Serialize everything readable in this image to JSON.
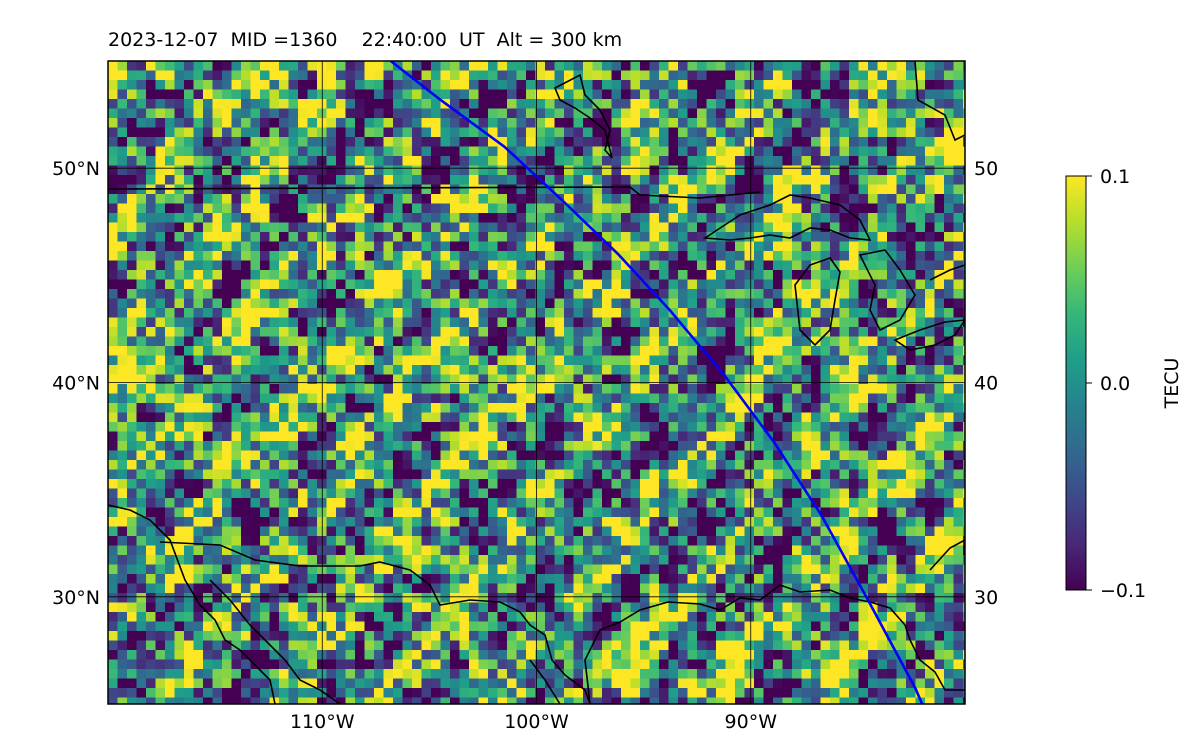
{
  "title": "2023-12-07  MID =1360    22:40:00  UT  Alt = 300 km",
  "map": {
    "extent": {
      "lon": [
        -120,
        -80
      ],
      "lat": [
        25,
        55
      ]
    },
    "lon_ticks": [
      {
        "value": -110,
        "label": "110°W"
      },
      {
        "value": -100,
        "label": "100°W"
      },
      {
        "value": -90,
        "label": "90°W"
      }
    ],
    "lat_ticks": [
      {
        "value": 50,
        "label": "50°N"
      },
      {
        "value": 40,
        "label": "40°N"
      },
      {
        "value": 30,
        "label": "30°N"
      }
    ],
    "track_color": "#0000ff",
    "track": [
      [
        -106.8,
        55
      ],
      [
        -104.5,
        53.2
      ],
      [
        -101.5,
        51
      ],
      [
        -98.8,
        48.5
      ],
      [
        -96.2,
        46
      ],
      [
        -93.8,
        43.4
      ],
      [
        -91.2,
        40.3
      ],
      [
        -88.9,
        37.2
      ],
      [
        -86.7,
        33.8
      ],
      [
        -84.5,
        29.8
      ],
      [
        -82.3,
        25.7
      ],
      [
        -82,
        25
      ]
    ]
  },
  "colorbar": {
    "label": "TECU",
    "min": -0.1,
    "max": 0.1,
    "ticks": [
      {
        "value": 0.1,
        "label": "0.1"
      },
      {
        "value": 0.0,
        "label": "0.0"
      },
      {
        "value": -0.1,
        "label": "−0.1"
      }
    ],
    "colormap": "viridis",
    "colors": [
      "#440154",
      "#482878",
      "#3e4989",
      "#31688e",
      "#26828e",
      "#1f9e89",
      "#35b779",
      "#6ece58",
      "#b5de2b",
      "#fde725"
    ]
  }
}
